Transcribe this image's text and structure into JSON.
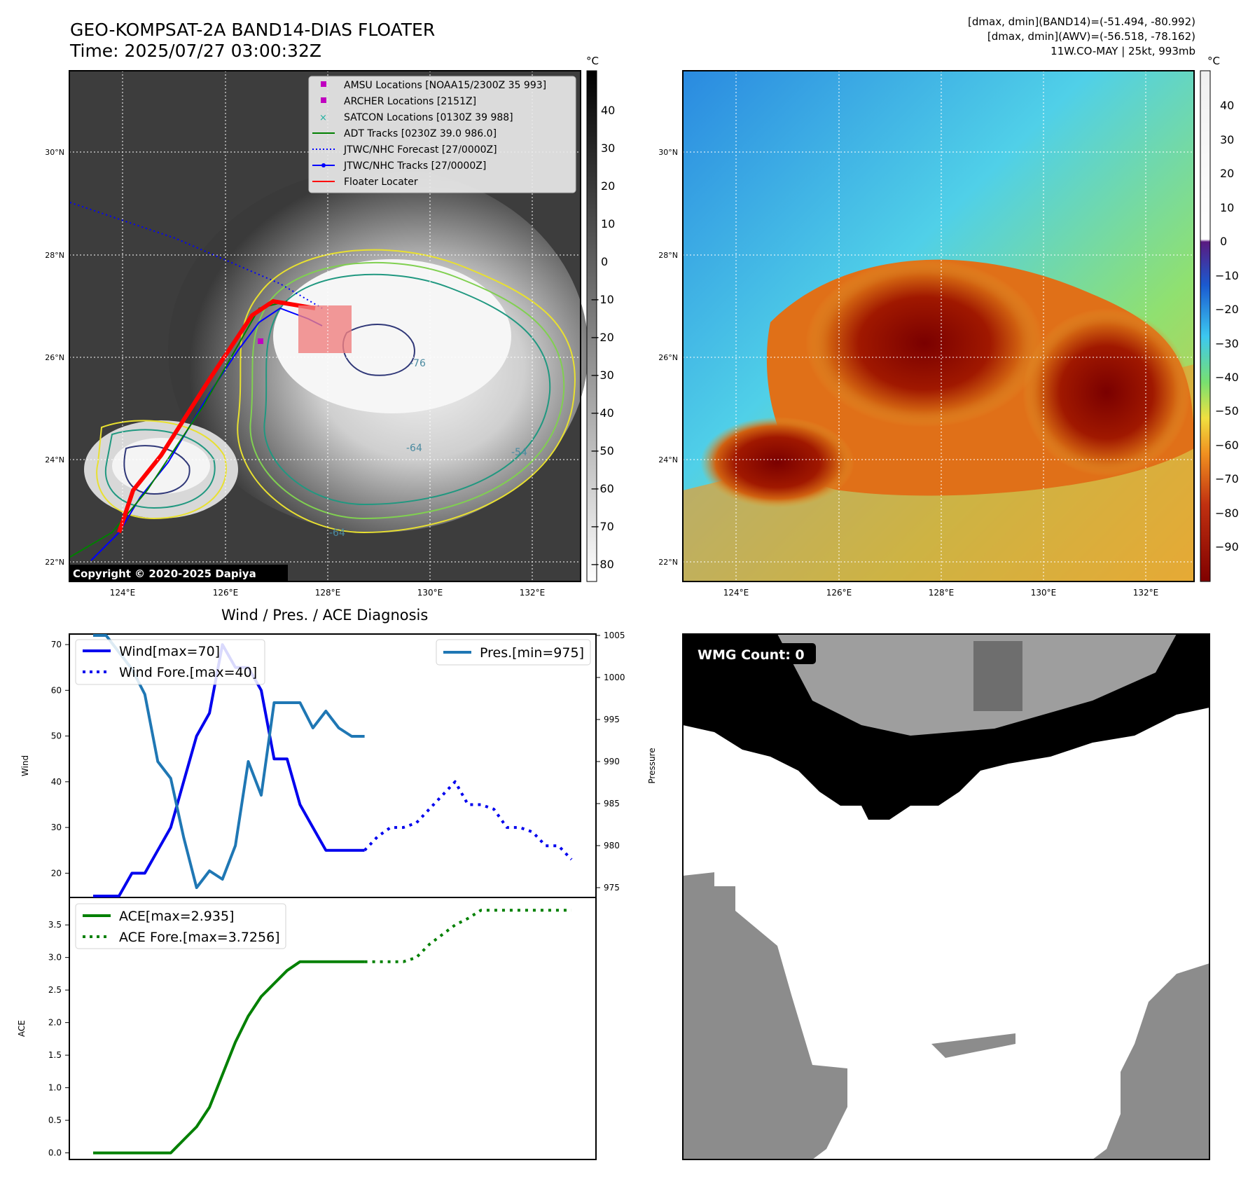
{
  "header": {
    "title_line1": "GEO-KOMPSAT-2A BAND14-DIAS FLOATER",
    "title_line2": "Time: 2025/07/27 03:00:32Z",
    "meta_line1": "[dmax, dmin](BAND14)=(-51.494, -80.992)",
    "meta_line2": "[dmax, dmin](AWV)=(-56.518, -78.162)",
    "meta_line3": "11W.CO-MAY | 25kt, 993mb"
  },
  "map_ir": {
    "lon_ticks": [
      "124°E",
      "126°E",
      "128°E",
      "130°E",
      "132°E"
    ],
    "lat_ticks": [
      "22°N",
      "24°N",
      "26°N",
      "28°N",
      "30°N"
    ],
    "colorbar_unit": "°C",
    "colorbar_ticks": [
      "40",
      "30",
      "20",
      "10",
      "0",
      "−10",
      "−20",
      "−30",
      "−40",
      "−50",
      "−60",
      "−70",
      "−80"
    ],
    "copyright": "Copyright © 2020-2025 Dapiya",
    "contour_labels": [
      "-64",
      "-54",
      "-76",
      "-64"
    ],
    "legend": [
      {
        "label": "AMSU Locations [NOAA15/2300Z 35 993]",
        "color": "#c000c0",
        "marker": "square"
      },
      {
        "label": "ARCHER Locations [2151Z]",
        "color": "#c000c0",
        "marker": "square"
      },
      {
        "label": "SATCON Locations [0130Z 39 988]",
        "color": "#20b0a0",
        "marker": "x"
      },
      {
        "label": "ADT Tracks [0230Z 39.0 986.0]",
        "color": "#008000",
        "marker": "line"
      },
      {
        "label": "JTWC/NHC Forecast [27/0000Z]",
        "color": "#0000ff",
        "marker": "dotted"
      },
      {
        "label": "JTWC/NHC Tracks [27/0000Z]",
        "color": "#0000ff",
        "marker": "line-dot"
      },
      {
        "label": "Floater Locater",
        "color": "#ff0000",
        "marker": "line"
      }
    ]
  },
  "map_wv": {
    "lon_ticks": [
      "124°E",
      "126°E",
      "128°E",
      "130°E",
      "132°E"
    ],
    "lat_ticks": [
      "22°N",
      "24°N",
      "26°N",
      "28°N",
      "30°N"
    ],
    "colorbar_unit": "°C",
    "colorbar_ticks": [
      "40",
      "30",
      "20",
      "10",
      "0",
      "−10",
      "−20",
      "−30",
      "−40",
      "−50",
      "−60",
      "−70",
      "−80",
      "−90"
    ]
  },
  "wmg": {
    "label": "WMG Count: 0"
  },
  "chart_data": [
    {
      "type": "line",
      "title": "Wind / Pres. / ACE Diagnosis",
      "ylabel": "Wind",
      "y2label": "Pressure",
      "ylim": [
        15,
        72
      ],
      "y2lim": [
        974,
        1005
      ],
      "yticks": [
        20,
        30,
        40,
        50,
        60,
        70
      ],
      "y2ticks": [
        975,
        980,
        985,
        990,
        995,
        1000,
        1005
      ],
      "series": [
        {
          "name": "Wind[max=70]",
          "color": "#0000ee",
          "style": "solid",
          "axis": "left",
          "x": [
            0,
            1,
            2,
            3,
            4,
            5,
            6,
            7,
            8,
            9,
            10,
            11,
            12,
            13,
            14,
            15,
            16,
            17,
            18,
            19,
            20,
            21
          ],
          "y": [
            15,
            15,
            15,
            20,
            20,
            25,
            30,
            40,
            50,
            55,
            70,
            65,
            65,
            60,
            45,
            45,
            35,
            30,
            25,
            25,
            25,
            25
          ]
        },
        {
          "name": "Wind Fore.[max=40]",
          "color": "#0000ee",
          "style": "dotted",
          "axis": "left",
          "x": [
            21,
            22,
            23,
            24,
            25,
            26,
            27,
            28,
            29,
            30,
            31,
            32,
            33,
            34,
            35,
            36,
            37
          ],
          "y": [
            25,
            28,
            30,
            30,
            31,
            34,
            37,
            40,
            35,
            35,
            34,
            30,
            30,
            29,
            26,
            26,
            23
          ]
        },
        {
          "name": "Pres.[min=975]",
          "color": "#1f77b4",
          "style": "solid",
          "axis": "right",
          "x": [
            0,
            1,
            2,
            3,
            4,
            5,
            6,
            7,
            8,
            9,
            10,
            11,
            12,
            13,
            14,
            15,
            16,
            17,
            18,
            19,
            20,
            21
          ],
          "y": [
            1005,
            1005,
            1003,
            1001,
            998,
            990,
            988,
            981,
            975,
            977,
            976,
            980,
            990,
            986,
            997,
            997,
            997,
            994,
            996,
            994,
            993,
            993
          ]
        }
      ]
    },
    {
      "type": "line",
      "ylabel": "ACE",
      "ylim": [
        -0.08,
        3.9
      ],
      "yticks": [
        0.0,
        0.5,
        1.0,
        1.5,
        2.0,
        2.5,
        3.0,
        3.5
      ],
      "series": [
        {
          "name": "ACE[max=2.935]",
          "color": "#008000",
          "style": "solid",
          "x": [
            0,
            1,
            2,
            3,
            4,
            5,
            6,
            7,
            8,
            9,
            10,
            11,
            12,
            13,
            14,
            15,
            16,
            17,
            18,
            19,
            20,
            21
          ],
          "y": [
            0,
            0,
            0,
            0,
            0,
            0,
            0,
            0.2,
            0.4,
            0.7,
            1.2,
            1.7,
            2.1,
            2.4,
            2.6,
            2.8,
            2.935,
            2.935,
            2.935,
            2.935,
            2.935,
            2.935
          ]
        },
        {
          "name": "ACE Fore.[max=3.7256]",
          "color": "#008000",
          "style": "dotted",
          "x": [
            21,
            22,
            23,
            24,
            25,
            26,
            27,
            28,
            29,
            30,
            31,
            32,
            33,
            34,
            35,
            36,
            37
          ],
          "y": [
            2.935,
            2.935,
            2.935,
            2.935,
            3.0,
            3.2,
            3.35,
            3.5,
            3.6,
            3.7256,
            3.7256,
            3.7256,
            3.7256,
            3.7256,
            3.7256,
            3.7256,
            3.7256
          ]
        }
      ]
    }
  ]
}
